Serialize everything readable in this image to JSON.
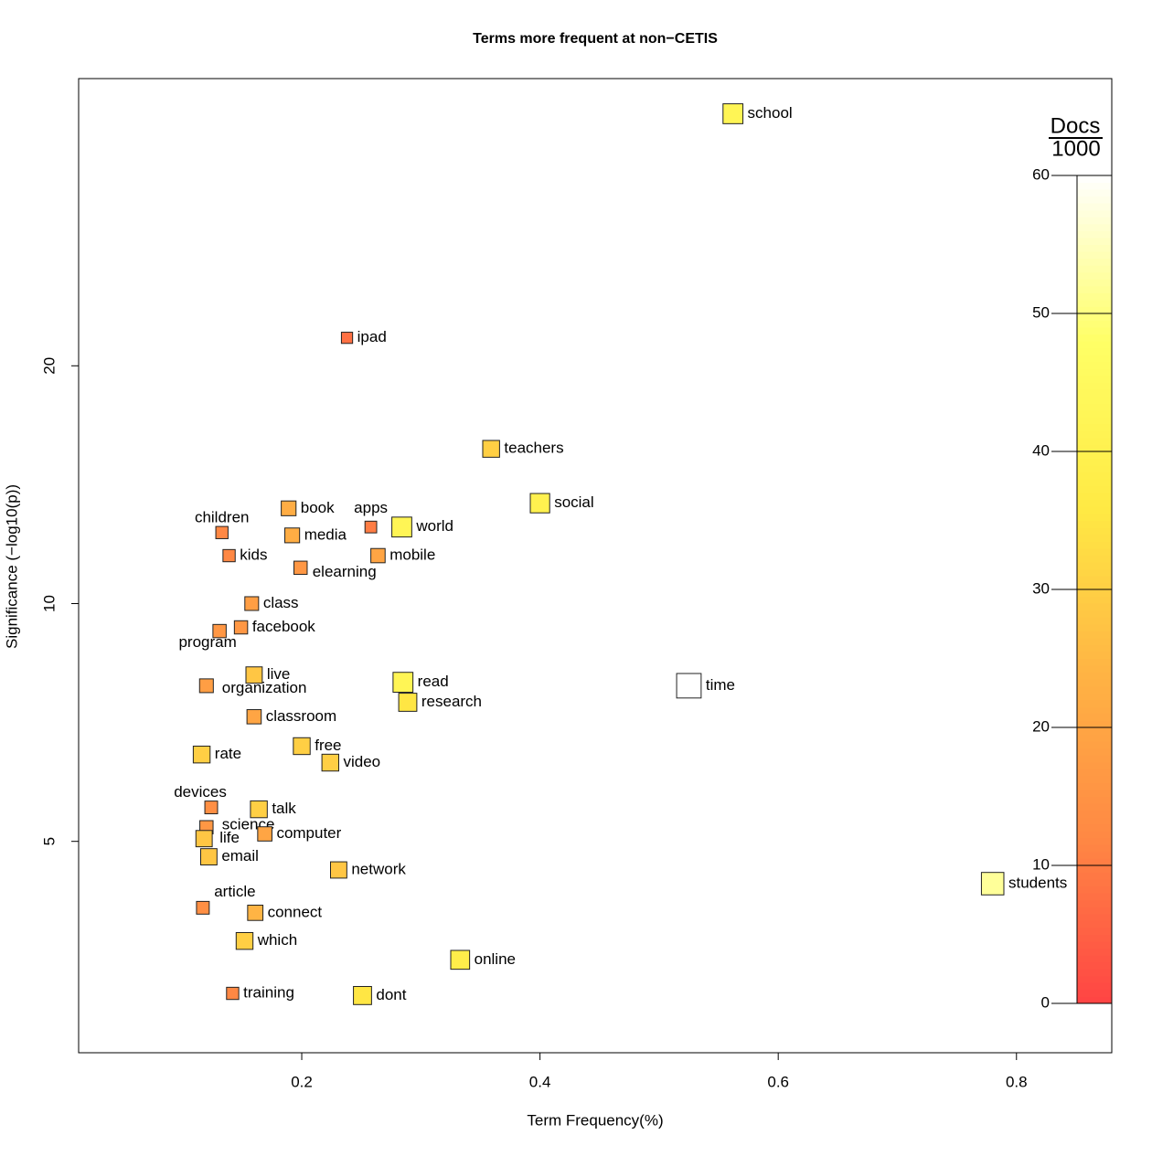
{
  "chart_data": {
    "type": "scatter",
    "title": "Terms more frequent at non−CETIS",
    "x_label": "Term Frequency(%)",
    "y_label": "Significance (−log10(p))",
    "y_log": true,
    "xlim": [
      0.0127,
      0.88
    ],
    "ylim": [
      2.7,
      46.2
    ],
    "xticks": [
      0.2,
      0.4,
      0.6,
      0.8
    ],
    "yticks": [
      5,
      10,
      20
    ],
    "labels": [
      "school",
      "ipad",
      "teachers",
      "social",
      "book",
      "apps",
      "world",
      "children",
      "media",
      "kids",
      "mobile",
      "elearning",
      "class",
      "facebook",
      "program",
      "live",
      "organization",
      "time",
      "read",
      "research",
      "classroom",
      "free",
      "video",
      "rate",
      "devices",
      "talk",
      "science",
      "life",
      "computer",
      "email",
      "network",
      "students",
      "article",
      "connect",
      "which",
      "online",
      "training",
      "dont"
    ],
    "x": [
      0.562,
      0.238,
      0.359,
      0.4,
      0.189,
      0.258,
      0.284,
      0.133,
      0.192,
      0.139,
      0.264,
      0.199,
      0.158,
      0.149,
      0.131,
      0.16,
      0.12,
      0.525,
      0.285,
      0.289,
      0.16,
      0.2,
      0.224,
      0.116,
      0.124,
      0.164,
      0.12,
      0.118,
      0.169,
      0.122,
      0.231,
      0.78,
      0.117,
      0.161,
      0.152,
      0.333,
      0.142,
      0.251
    ],
    "y": [
      41.7,
      21.7,
      15.7,
      13.4,
      13.2,
      12.5,
      12.5,
      12.3,
      12.2,
      11.5,
      11.5,
      11.1,
      10.0,
      9.33,
      9.23,
      8.12,
      7.87,
      7.87,
      7.95,
      7.5,
      7.19,
      6.6,
      6.29,
      6.44,
      5.52,
      5.49,
      5.21,
      5.04,
      5.11,
      4.78,
      4.6,
      4.42,
      4.12,
      4.06,
      3.74,
      3.54,
      3.21,
      3.19
    ],
    "docs": [
      42,
      8,
      30,
      40,
      22,
      10,
      42,
      12,
      22,
      12,
      20,
      16,
      18,
      16,
      16,
      28,
      18,
      60,
      42,
      35,
      20,
      30,
      30,
      30,
      14,
      30,
      16,
      28,
      20,
      28,
      28,
      52,
      14,
      24,
      30,
      38,
      12,
      35
    ],
    "colorbar_title": "Docs",
    "colorbar_subtitle": "1000",
    "colorbar_lim": [
      0,
      60
    ],
    "colorbar_ticks": [
      0,
      10,
      20,
      30,
      40,
      50,
      60
    ],
    "colormap": [
      "#ff4444",
      "#ff8844",
      "#ffb444",
      "#ffea44",
      "#ffff66",
      "#ffffff"
    ]
  }
}
